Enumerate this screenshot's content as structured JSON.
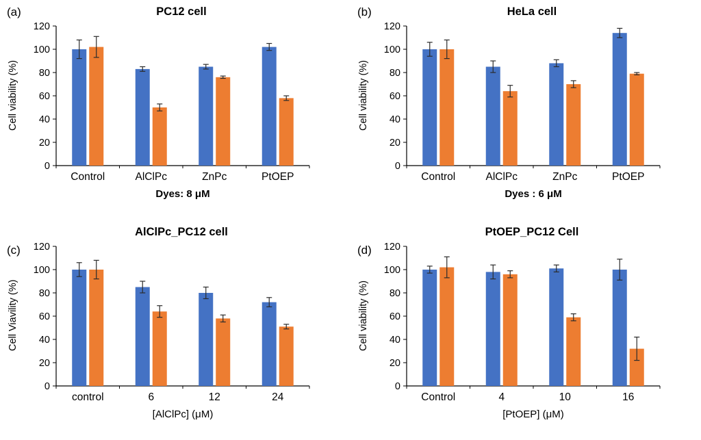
{
  "figure": {
    "background": "#ffffff"
  },
  "colors": {
    "bar_blue": "#4472C4",
    "bar_orange": "#ED7D31",
    "error_bar": "#2b2b2b",
    "axis": "#000000"
  },
  "chart_data": [
    {
      "type": "bar",
      "panel_label": "(a)",
      "title": "PC12 cell",
      "ylabel": "Cell viability (%)",
      "xlabel": "Dyes: 8 μM",
      "xlabel_bold": true,
      "categories": [
        "Control",
        "AlClPc",
        "ZnPc",
        "PtOEP"
      ],
      "series": [
        {
          "name": "blue",
          "color": "#4472C4",
          "values": [
            100,
            83,
            85,
            102
          ],
          "errors": [
            8,
            2,
            2,
            3
          ]
        },
        {
          "name": "orange",
          "color": "#ED7D31",
          "values": [
            102,
            50,
            76,
            58
          ],
          "errors": [
            9,
            3,
            1,
            2
          ]
        }
      ],
      "ylim": [
        0,
        120
      ],
      "yticks": [
        0,
        20,
        40,
        60,
        80,
        100,
        120
      ],
      "grid": false,
      "legend": "none"
    },
    {
      "type": "bar",
      "panel_label": "(b)",
      "title": "HeLa cell",
      "ylabel": "Cell viability (%)",
      "xlabel": "Dyes : 6 μM",
      "xlabel_bold": true,
      "categories": [
        "Control",
        "AlClPc",
        "ZnPc",
        "PtOEP"
      ],
      "series": [
        {
          "name": "blue",
          "color": "#4472C4",
          "values": [
            100,
            85,
            88,
            114
          ],
          "errors": [
            6,
            5,
            3,
            4
          ]
        },
        {
          "name": "orange",
          "color": "#ED7D31",
          "values": [
            100,
            64,
            70,
            79
          ],
          "errors": [
            8,
            5,
            3,
            1
          ]
        }
      ],
      "ylim": [
        0,
        120
      ],
      "yticks": [
        0,
        20,
        40,
        60,
        80,
        100,
        120
      ],
      "grid": false,
      "legend": "none"
    },
    {
      "type": "bar",
      "panel_label": "(c)",
      "title": "AlClPc_PC12 cell",
      "ylabel": "Cell Viavility (%)",
      "xlabel": "[AlClPc] (μM)",
      "xlabel_bold": false,
      "categories": [
        "control",
        "6",
        "12",
        "24"
      ],
      "series": [
        {
          "name": "blue",
          "color": "#4472C4",
          "values": [
            100,
            85,
            80,
            72
          ],
          "errors": [
            6,
            5,
            5,
            4
          ]
        },
        {
          "name": "orange",
          "color": "#ED7D31",
          "values": [
            100,
            64,
            58,
            51
          ],
          "errors": [
            8,
            5,
            3,
            2
          ]
        }
      ],
      "ylim": [
        0,
        120
      ],
      "yticks": [
        0,
        20,
        40,
        60,
        80,
        100,
        120
      ],
      "grid": false,
      "legend": "none"
    },
    {
      "type": "bar",
      "panel_label": "(d)",
      "title": "PtOEP_PC12 Cell",
      "ylabel": "Cell viability (%)",
      "xlabel": "[PtOEP] (μM)",
      "xlabel_bold": false,
      "categories": [
        "Control",
        "4",
        "10",
        "16"
      ],
      "series": [
        {
          "name": "blue",
          "color": "#4472C4",
          "values": [
            100,
            98,
            101,
            100
          ],
          "errors": [
            3,
            6,
            3,
            9
          ]
        },
        {
          "name": "orange",
          "color": "#ED7D31",
          "values": [
            102,
            96,
            59,
            32
          ],
          "errors": [
            9,
            3,
            3,
            10
          ]
        }
      ],
      "ylim": [
        0,
        120
      ],
      "yticks": [
        0,
        20,
        40,
        60,
        80,
        100,
        120
      ],
      "grid": false,
      "legend": "none"
    }
  ]
}
